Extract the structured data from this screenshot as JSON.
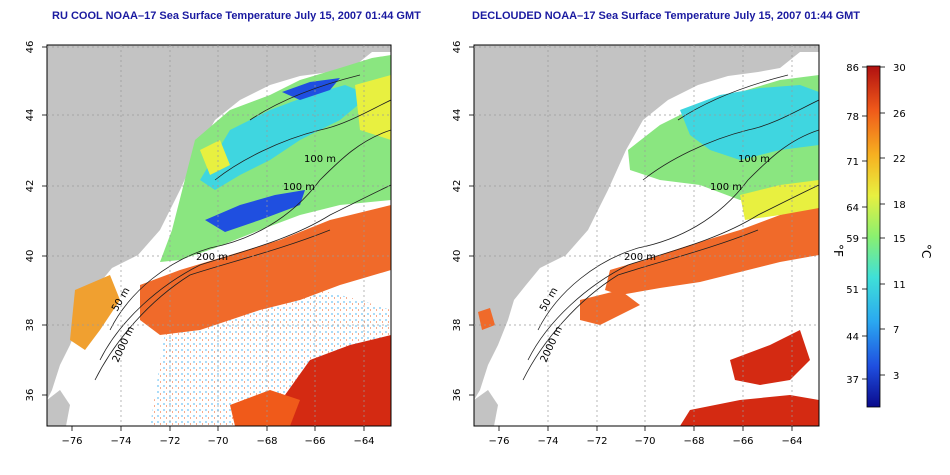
{
  "panels": [
    {
      "title": "RU COOL NOAA–17 Sea Surface Temperature July 15, 2007 01:44 GMT",
      "x_ticks": [
        "−76",
        "−74",
        "−72",
        "−70",
        "−68",
        "−66",
        "−64"
      ],
      "y_ticks": [
        "36",
        "38",
        "40",
        "42",
        "44",
        "46"
      ],
      "contours": [
        "100 m",
        "100 m",
        "200 m",
        "50 m",
        "2000 m"
      ],
      "variant": "cloudy"
    },
    {
      "title": "DECLOUDED NOAA–17 Sea Surface Temperature July 15, 2007 01:44 GMT",
      "x_ticks": [
        "−76",
        "−74",
        "−72",
        "−70",
        "−68",
        "−66",
        "−64"
      ],
      "y_ticks": [
        "36",
        "38",
        "40",
        "42",
        "44",
        "46"
      ],
      "contours": [
        "100 m",
        "100 m",
        "200 m",
        "50 m",
        "2000 m"
      ],
      "variant": "declouded"
    }
  ],
  "colorbar": {
    "fahrenheit_unit": "°F",
    "celsius_unit": "°C",
    "fahrenheit_ticks": [
      "86",
      "78",
      "71",
      "64",
      "59",
      "51",
      "44",
      "37"
    ],
    "celsius_ticks": [
      "30",
      "26",
      "22",
      "18",
      "15",
      "11",
      "7",
      "3"
    ],
    "colors": [
      "#0a0a8c",
      "#1f4fe0",
      "#2aa8f0",
      "#3fe0d8",
      "#8af070",
      "#e8f040",
      "#f7b020",
      "#f05a1a",
      "#b01010"
    ]
  }
}
